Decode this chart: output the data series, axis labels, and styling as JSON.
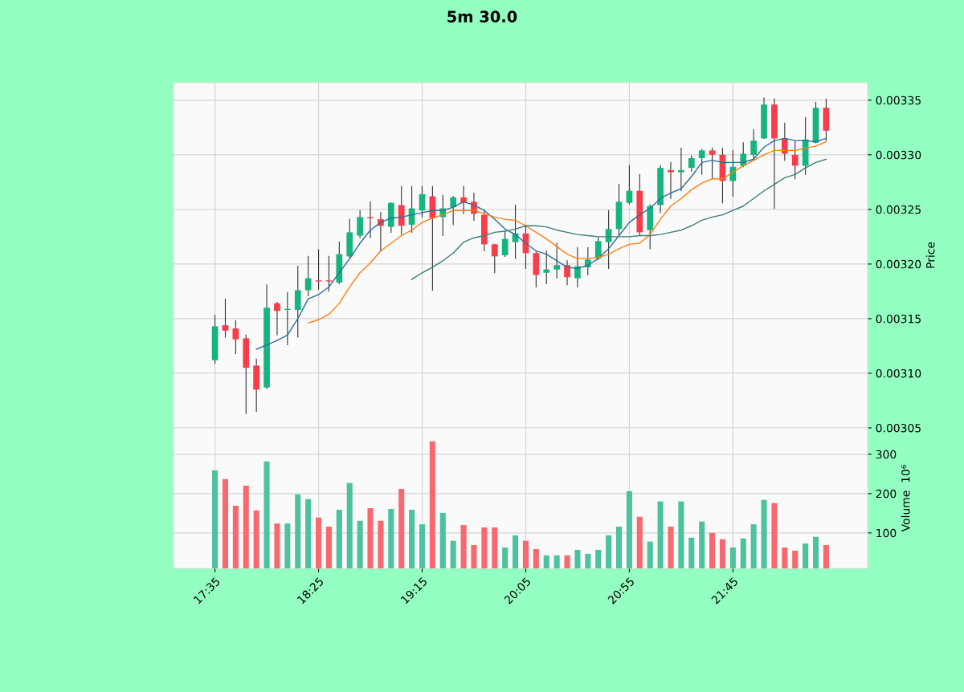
{
  "chart_data": [
    {
      "type": "candlestick",
      "title": "5m 30.0",
      "ylabel": "Price",
      "categories": [
        null,
        null,
        null,
        null,
        null,
        null,
        null,
        null,
        null,
        null,
        null,
        null,
        null,
        null,
        null,
        null,
        null,
        null,
        null,
        null,
        null,
        null,
        null,
        null,
        null,
        null,
        null,
        null,
        null,
        null,
        null,
        null,
        null,
        null,
        null,
        null,
        null,
        null,
        null,
        null,
        null,
        null,
        null,
        null,
        null,
        null,
        null,
        null,
        null,
        null,
        null,
        null,
        null,
        null,
        null,
        null,
        null,
        null,
        null,
        null
      ],
      "ohlc": [
        [
          0.003112,
          0.003153,
          0.003109,
          0.003143
        ],
        [
          0.003144,
          0.003168,
          0.003133,
          0.003139
        ],
        [
          0.003141,
          0.003148,
          0.003118,
          0.003131
        ],
        [
          0.003132,
          0.003135,
          0.003063,
          0.003105
        ],
        [
          0.003107,
          0.003113,
          0.003065,
          0.003085
        ],
        [
          0.003087,
          0.003181,
          0.003086,
          0.00316
        ],
        [
          0.003164,
          0.003165,
          0.003135,
          0.003157
        ],
        [
          0.003158,
          0.003174,
          0.003126,
          0.003159
        ],
        [
          0.003158,
          0.003198,
          0.003133,
          0.003176
        ],
        [
          0.003176,
          0.003207,
          0.003171,
          0.003187
        ],
        [
          0.003185,
          0.003213,
          0.003177,
          0.003184
        ],
        [
          0.003185,
          0.003207,
          0.003175,
          0.003184
        ],
        [
          0.003183,
          0.00322,
          0.003182,
          0.003209
        ],
        [
          0.003207,
          0.003241,
          0.003206,
          0.003229
        ],
        [
          0.003226,
          0.003249,
          0.003224,
          0.003243
        ],
        [
          0.003243,
          0.003257,
          0.003224,
          0.003242
        ],
        [
          0.003241,
          0.003247,
          0.003212,
          0.003235
        ],
        [
          0.003234,
          0.003256,
          0.003229,
          0.003256
        ],
        [
          0.003254,
          0.003271,
          0.003227,
          0.003235
        ],
        [
          0.003236,
          0.003271,
          0.003229,
          0.003251
        ],
        [
          0.003249,
          0.003271,
          0.003243,
          0.003264
        ],
        [
          0.003262,
          0.003271,
          0.003176,
          0.003242
        ],
        [
          0.003243,
          0.003263,
          0.003226,
          0.003251
        ],
        [
          0.003252,
          0.003262,
          0.003236,
          0.003261
        ],
        [
          0.003261,
          0.003271,
          0.003246,
          0.003256
        ],
        [
          0.003257,
          0.003265,
          0.00324,
          0.003246
        ],
        [
          0.003245,
          0.003249,
          0.003212,
          0.003218
        ],
        [
          0.003218,
          0.003218,
          0.003192,
          0.003207
        ],
        [
          0.003208,
          0.00323,
          0.003207,
          0.003223
        ],
        [
          0.00322,
          0.003254,
          0.003205,
          0.003228
        ],
        [
          0.003228,
          0.003235,
          0.003196,
          0.00321
        ],
        [
          0.00321,
          0.003211,
          0.003179,
          0.00319
        ],
        [
          0.003192,
          0.003212,
          0.003182,
          0.003195
        ],
        [
          0.003195,
          0.003219,
          0.003187,
          0.003199
        ],
        [
          0.003199,
          0.003203,
          0.003181,
          0.003188
        ],
        [
          0.003187,
          0.003215,
          0.003179,
          0.003198
        ],
        [
          0.003197,
          0.003215,
          0.00319,
          0.003204
        ],
        [
          0.003205,
          0.003224,
          0.003204,
          0.003221
        ],
        [
          0.00322,
          0.003249,
          0.003196,
          0.003232
        ],
        [
          0.003232,
          0.003273,
          0.003226,
          0.003257
        ],
        [
          0.003256,
          0.00329,
          0.003255,
          0.003267
        ],
        [
          0.003267,
          0.003282,
          0.003226,
          0.003229
        ],
        [
          0.003231,
          0.003254,
          0.003214,
          0.003253
        ],
        [
          0.003254,
          0.00329,
          0.003247,
          0.003288
        ],
        [
          0.003286,
          0.003293,
          0.00326,
          0.003284
        ],
        [
          0.003284,
          0.003306,
          0.003267,
          0.003286
        ],
        [
          0.003288,
          0.003299,
          0.003285,
          0.003297
        ],
        [
          0.003297,
          0.003305,
          0.003282,
          0.003304
        ],
        [
          0.003304,
          0.003306,
          0.003278,
          0.0033
        ],
        [
          0.0033,
          0.003306,
          0.003256,
          0.003276
        ],
        [
          0.003276,
          0.003304,
          0.003262,
          0.003289
        ],
        [
          0.00329,
          0.003311,
          0.003289,
          0.003301
        ],
        [
          0.0033,
          0.003323,
          0.003295,
          0.003313
        ],
        [
          0.003315,
          0.003352,
          0.003315,
          0.003346
        ],
        [
          0.003346,
          0.003351,
          0.003251,
          0.003315
        ],
        [
          0.003315,
          0.003329,
          0.003295,
          0.003301
        ],
        [
          0.0033,
          0.003312,
          0.003278,
          0.00329
        ],
        [
          0.00329,
          0.003334,
          0.003282,
          0.003314
        ],
        [
          0.003311,
          0.003348,
          0.003311,
          0.003343
        ],
        [
          0.003343,
          0.003351,
          0.003313,
          0.003322
        ]
      ],
      "colors": [
        "#16b47e",
        "#f73d49",
        "#f73d49",
        "#f73d49",
        "#f73d49",
        "#16b47e",
        "#f73d49",
        "#16b47e",
        "#16b47e",
        "#16b47e",
        "#f73d49",
        "#f73d49",
        "#16b47e",
        "#16b47e",
        "#16b47e",
        "#f73d49",
        "#f73d49",
        "#16b47e",
        "#f73d49",
        "#16b47e",
        "#16b47e",
        "#f73d49",
        "#16b47e",
        "#16b47e",
        "#f73d49",
        "#f73d49",
        "#f73d49",
        "#f73d49",
        "#16b47e",
        "#16b47e",
        "#f73d49",
        "#f73d49",
        "#16b47e",
        "#16b47e",
        "#f73d49",
        "#16b47e",
        "#16b47e",
        "#16b47e",
        "#16b47e",
        "#16b47e",
        "#16b47e",
        "#f73d49",
        "#16b47e",
        "#16b47e",
        "#f73d49",
        "#16b47e",
        "#16b47e",
        "#16b47e",
        "#f73d49",
        "#f73d49",
        "#16b47e",
        "#16b47e",
        "#16b47e",
        "#16b47e",
        "#f73d49",
        "#f73d49",
        "#f73d49",
        "#16b47e",
        "#16b47e",
        "#f73d49"
      ],
      "series": [
        {
          "type": "line",
          "color": "#2a6e9c",
          "values": [
            null,
            null,
            null,
            null,
            0.003122,
            0.003126,
            0.00313,
            0.003135,
            0.00315,
            0.003168,
            0.003172,
            0.003179,
            0.003192,
            0.003205,
            0.003219,
            0.003231,
            0.003238,
            0.003242,
            0.003243,
            0.003245,
            0.003247,
            0.003249,
            0.003249,
            0.003252,
            0.003257,
            0.003254,
            0.003249,
            0.003241,
            0.003232,
            0.003227,
            0.003219,
            0.003212,
            0.003209,
            0.003203,
            0.003197,
            0.003196,
            0.003199,
            0.003205,
            0.003214,
            0.003226,
            0.003238,
            0.003245,
            0.003251,
            0.00326,
            0.003265,
            0.003269,
            0.00328,
            0.003293,
            0.003295,
            0.003293,
            0.003293,
            0.003293,
            0.003296,
            0.003307,
            0.003313,
            0.003315,
            0.003313,
            0.003313,
            0.003312,
            0.003315
          ]
        },
        {
          "type": "line",
          "color": "#ff7f0e",
          "values": [
            null,
            null,
            null,
            null,
            null,
            null,
            null,
            null,
            null,
            0.003146,
            0.003149,
            0.003154,
            0.003164,
            0.003179,
            0.003192,
            0.003201,
            0.003212,
            0.003219,
            0.003226,
            0.003231,
            0.003238,
            0.003242,
            0.003245,
            0.003249,
            0.003249,
            0.003249,
            0.003246,
            0.003243,
            0.003241,
            0.00324,
            0.003235,
            0.003229,
            0.003223,
            0.003216,
            0.003209,
            0.003205,
            0.003205,
            0.003206,
            0.003209,
            0.003214,
            0.003218,
            0.003219,
            0.003227,
            0.003241,
            0.003253,
            0.00326,
            0.003268,
            0.003274,
            0.003278,
            0.003278,
            0.003284,
            0.00329,
            0.003295,
            0.0033,
            0.003304,
            0.003304,
            0.003304,
            0.003306,
            0.003308,
            0.003312
          ]
        },
        {
          "type": "line",
          "color": "#3a7d7c",
          "values": [
            null,
            null,
            null,
            null,
            null,
            null,
            null,
            null,
            null,
            null,
            null,
            null,
            null,
            null,
            null,
            null,
            null,
            null,
            null,
            0.003186,
            0.003192,
            0.003197,
            0.003203,
            0.00321,
            0.00322,
            0.003224,
            0.003226,
            0.003229,
            0.00323,
            0.003232,
            0.003235,
            0.003235,
            0.003234,
            0.003231,
            0.003229,
            0.003227,
            0.003226,
            0.003225,
            0.003225,
            0.003225,
            0.003225,
            0.003226,
            0.003226,
            0.003227,
            0.003229,
            0.003231,
            0.003235,
            0.00324,
            0.003243,
            0.003245,
            0.003249,
            0.003253,
            0.00326,
            0.003267,
            0.003273,
            0.003279,
            0.003282,
            0.003288,
            0.003293,
            0.003296
          ]
        }
      ],
      "ylim": [
        0.00305,
        0.003366
      ],
      "yticks": [
        0.00305,
        {
          "value": 0.0031,
          "label": "0.00310"
        },
        0.00315,
        {
          "value": 0.0032,
          "label": "0.00320"
        },
        0.00325,
        {
          "value": 0.0033,
          "label": "0.00330"
        },
        0.00335
      ],
      "grid": true,
      "tick_labels": "y"
    },
    {
      "type": "bar",
      "ylabel": "Volume  10⁶",
      "categories": [
        "17:35",
        null,
        null,
        null,
        null,
        null,
        null,
        null,
        null,
        null,
        "18:25",
        null,
        null,
        null,
        null,
        null,
        null,
        null,
        null,
        null,
        "19:15",
        null,
        null,
        null,
        null,
        null,
        null,
        null,
        null,
        null,
        "20:05",
        null,
        null,
        null,
        null,
        null,
        null,
        null,
        null,
        null,
        "20:55",
        null,
        null,
        null,
        null,
        null,
        null,
        null,
        null,
        null,
        "21:45",
        null,
        null,
        null,
        null,
        null,
        null,
        null,
        null,
        null
      ],
      "values": [
        259,
        237,
        169,
        220,
        157,
        282,
        124,
        124,
        198,
        186,
        139,
        116,
        159,
        227,
        131,
        163,
        131,
        161,
        212,
        159,
        122,
        333,
        151,
        80,
        120,
        69,
        114,
        114,
        63,
        94,
        80,
        59,
        43,
        43,
        43,
        57,
        47,
        57,
        94,
        116,
        206,
        141,
        78,
        180,
        116,
        180,
        88,
        129,
        100,
        84,
        63,
        86,
        122,
        184,
        176,
        63,
        55,
        73,
        90,
        69
      ],
      "colors": [
        "#4cc29e",
        "#f8696f",
        "#f8696f",
        "#f8696f",
        "#f8696f",
        "#4cc29e",
        "#f8696f",
        "#4cc29e",
        "#4cc29e",
        "#4cc29e",
        "#f8696f",
        "#f8696f",
        "#4cc29e",
        "#4cc29e",
        "#4cc29e",
        "#f8696f",
        "#f8696f",
        "#4cc29e",
        "#f8696f",
        "#4cc29e",
        "#4cc29e",
        "#f8696f",
        "#4cc29e",
        "#4cc29e",
        "#f8696f",
        "#f8696f",
        "#f8696f",
        "#f8696f",
        "#4cc29e",
        "#4cc29e",
        "#f8696f",
        "#f8696f",
        "#4cc29e",
        "#4cc29e",
        "#f8696f",
        "#4cc29e",
        "#4cc29e",
        "#4cc29e",
        "#4cc29e",
        "#4cc29e",
        "#4cc29e",
        "#f8696f",
        "#4cc29e",
        "#4cc29e",
        "#f8696f",
        "#4cc29e",
        "#4cc29e",
        "#4cc29e",
        "#f8696f",
        "#f8696f",
        "#4cc29e",
        "#4cc29e",
        "#4cc29e",
        "#4cc29e",
        "#f8696f",
        "#f8696f",
        "#f8696f",
        "#4cc29e",
        "#4cc29e",
        "#f8696f"
      ],
      "ylim": [
        10,
        367
      ],
      "yticks": [
        100,
        200,
        300
      ],
      "grid": true
    }
  ]
}
